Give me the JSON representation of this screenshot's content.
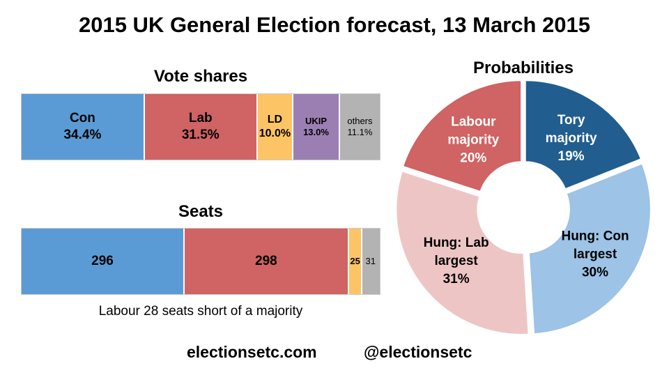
{
  "title": "2015 UK General Election forecast, 13 March 2015",
  "footer": {
    "website": "electionsetc.com",
    "handle": "@electionsetc"
  },
  "colors": {
    "con": "#5b9bd5",
    "lab": "#d06363",
    "ld": "#fdc465",
    "ukip": "#9b7fb3",
    "others": "#b3b3b3",
    "tory_majority": "#215e8f",
    "hung_con": "#9dc3e6",
    "hung_lab": "#eec5c5",
    "labour_majority": "#d06363"
  },
  "chart_data": [
    {
      "type": "bar",
      "title": "Vote shares",
      "orientation": "horizontal-stacked",
      "unit": "%",
      "segments": [
        {
          "key": "con",
          "label": "Con",
          "value": 34.4,
          "value_text": "34.4%"
        },
        {
          "key": "lab",
          "label": "Lab",
          "value": 31.5,
          "value_text": "31.5%"
        },
        {
          "key": "ld",
          "label": "LD",
          "value": 10.0,
          "value_text": "10.0%"
        },
        {
          "key": "ukip",
          "label": "UKIP",
          "value": 13.0,
          "value_text": "13.0%"
        },
        {
          "key": "others",
          "label": "others",
          "value": 11.1,
          "value_text": "11.1%"
        }
      ]
    },
    {
      "type": "bar",
      "title": "Seats",
      "orientation": "horizontal-stacked",
      "note": "Labour 28 seats short of a majority",
      "segments": [
        {
          "key": "con",
          "value": 296,
          "value_text": "296"
        },
        {
          "key": "lab",
          "value": 298,
          "value_text": "298"
        },
        {
          "key": "ld",
          "value": 25,
          "value_text": "25"
        },
        {
          "key": "others",
          "value": 31,
          "value_text": "31"
        }
      ]
    },
    {
      "type": "pie",
      "title": "Probabilities",
      "donut": true,
      "unit": "%",
      "slices": [
        {
          "key": "tory_majority",
          "label_lines": [
            "Tory",
            "majority"
          ],
          "value": 19,
          "value_text": "19%"
        },
        {
          "key": "hung_con",
          "label_lines": [
            "Hung: Con",
            "largest"
          ],
          "value": 30,
          "value_text": "30%"
        },
        {
          "key": "hung_lab",
          "label_lines": [
            "Hung: Lab",
            "largest"
          ],
          "value": 31,
          "value_text": "31%"
        },
        {
          "key": "labour_majority",
          "label_lines": [
            "Labour",
            "majority"
          ],
          "value": 20,
          "value_text": "20%"
        }
      ]
    }
  ]
}
